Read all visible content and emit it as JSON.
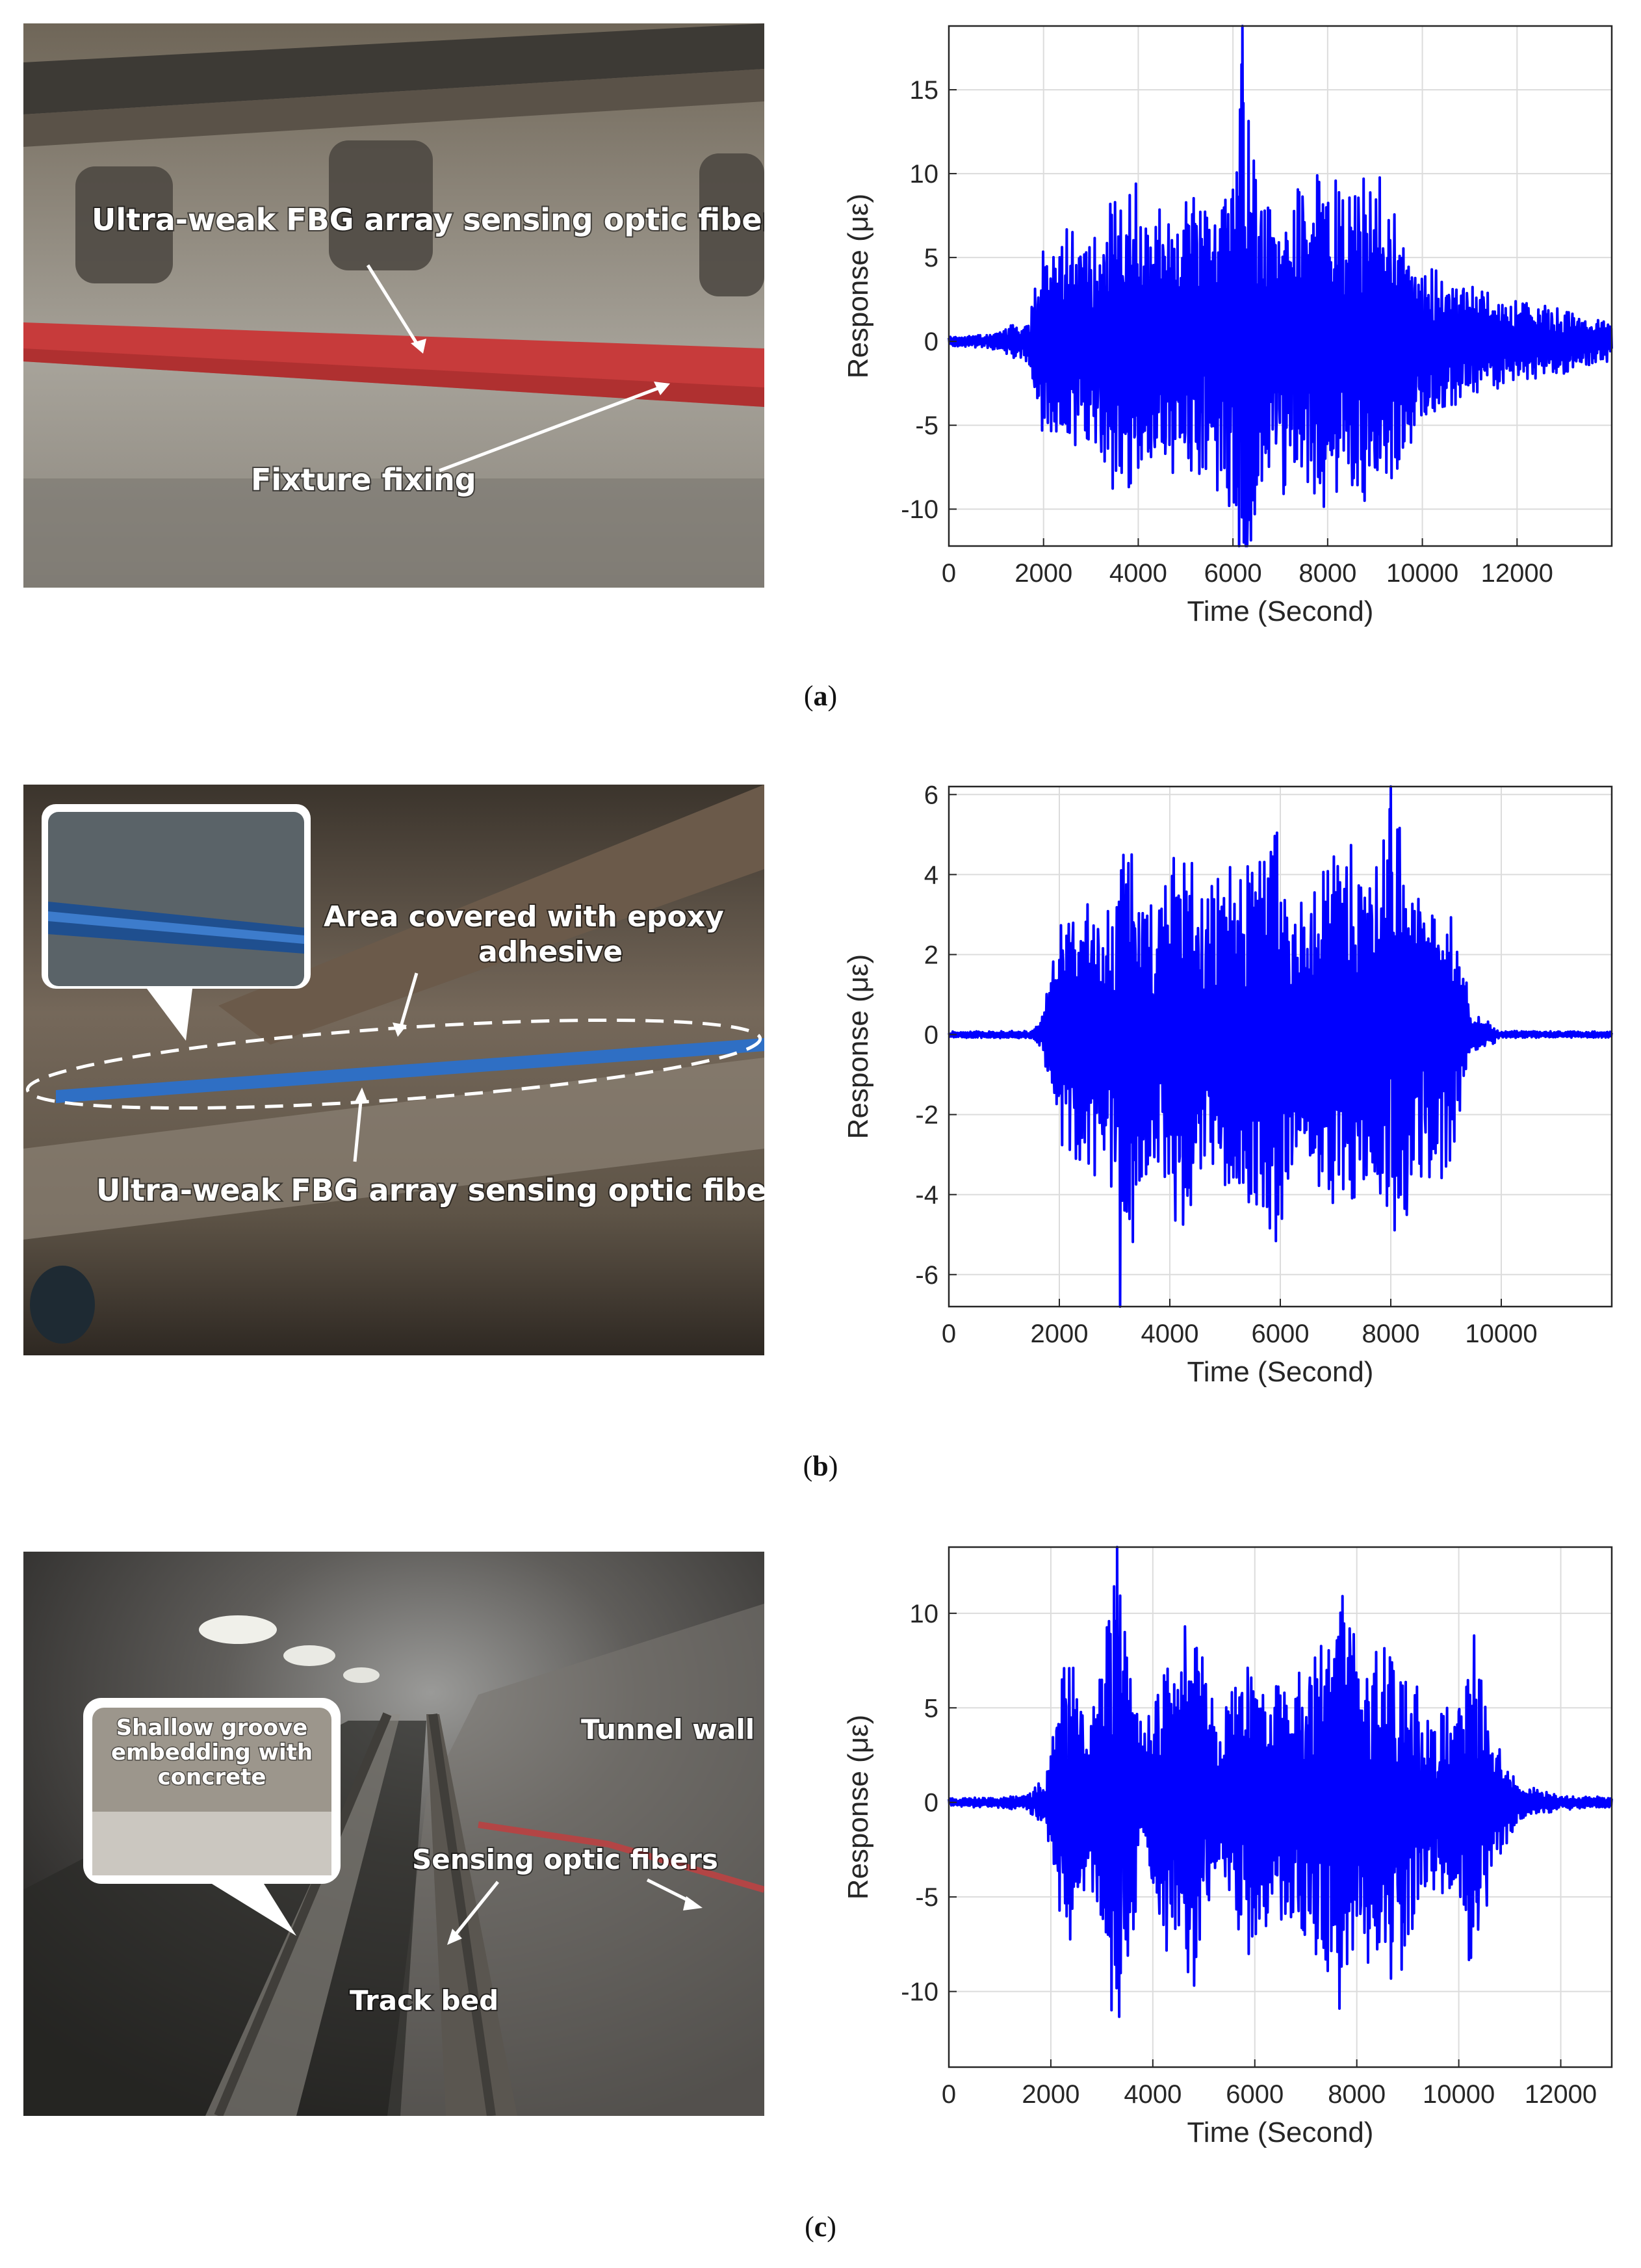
{
  "panels": [
    {
      "caption": "a",
      "photo_labels": {
        "fiber": "Ultra-weak FBG array sensing optic fiber",
        "fixture": "Fixture fixing"
      }
    },
    {
      "caption": "b",
      "photo_labels": {
        "epoxy_line1": "Area covered with epoxy",
        "epoxy_line2": "adhesive",
        "fiber": "Ultra-weak FBG array sensing optic fiber"
      }
    },
    {
      "caption": "c",
      "photo_labels": {
        "groove_line1": "Shallow groove",
        "groove_line2": "embedding with",
        "groove_line3": "concrete",
        "wall": "Tunnel wall",
        "fibers": "Sensing optic fibers",
        "bed": "Track bed"
      }
    }
  ],
  "chart_data": [
    {
      "type": "line",
      "xlabel": "Time (Second)",
      "ylabel": "Response (με)",
      "xlim": [
        0,
        14000
      ],
      "ylim": [
        -12.2,
        18.8
      ],
      "xticks": [
        0,
        2000,
        4000,
        6000,
        8000,
        10000,
        12000
      ],
      "yticks": [
        -10,
        -5,
        0,
        5,
        10,
        15
      ],
      "grid": true,
      "color": "#0000ff",
      "series": [
        {
          "envelope_x": [
            0,
            1000,
            1700,
            2000,
            2500,
            3000,
            3500,
            4000,
            4500,
            5000,
            5500,
            6000,
            6200,
            6500,
            7000,
            7500,
            8000,
            8500,
            9000,
            9500,
            10000,
            10500,
            11000,
            11500,
            12000,
            12500,
            13000,
            13500,
            14000
          ],
          "envelope_y": [
            0.3,
            0.5,
            1.5,
            6.5,
            7,
            6,
            9.5,
            10,
            8.5,
            9,
            8.5,
            10.5,
            18.8,
            10,
            9,
            10,
            10.5,
            10,
            11,
            7.5,
            5,
            4,
            3.5,
            3,
            2.5,
            2.2,
            2,
            1.6,
            1.2
          ],
          "min_spike": [
            6300,
            -12.2
          ],
          "samples": 1400
        }
      ]
    },
    {
      "type": "line",
      "xlabel": "Time (Second)",
      "ylabel": "Response (με)",
      "xlim": [
        0,
        12000
      ],
      "ylim": [
        -6.8,
        6.2
      ],
      "xticks": [
        0,
        2000,
        4000,
        6000,
        8000,
        10000
      ],
      "yticks": [
        -6,
        -4,
        -2,
        0,
        2,
        4,
        6
      ],
      "grid": true,
      "color": "#0000ff",
      "series": [
        {
          "envelope_x": [
            0,
            1500,
            1700,
            1900,
            2300,
            2800,
            3300,
            3700,
            4200,
            4600,
            5000,
            5500,
            5900,
            6300,
            6800,
            7200,
            7700,
            8000,
            8400,
            8900,
            9200,
            9500,
            10000,
            11000,
            12000
          ],
          "envelope_y": [
            0.08,
            0.1,
            0.5,
            2.5,
            4,
            3.5,
            5.5,
            3.5,
            5.5,
            3.5,
            4.5,
            4.5,
            5.5,
            3.5,
            4.5,
            5,
            4,
            6.2,
            4,
            4.2,
            2.5,
            0.6,
            0.1,
            0.08,
            0.08
          ],
          "min_spike": [
            3100,
            -6.8
          ],
          "samples": 1200
        }
      ]
    },
    {
      "type": "line",
      "xlabel": "Time (Second)",
      "ylabel": "Response (με)",
      "xlim": [
        0,
        13000
      ],
      "ylim": [
        -14,
        13.5
      ],
      "xticks": [
        0,
        2000,
        4000,
        6000,
        8000,
        10000,
        12000
      ],
      "yticks": [
        -10,
        -5,
        0,
        5,
        10
      ],
      "grid": true,
      "color": "#0000ff",
      "series": [
        {
          "envelope_x": [
            0,
            1500,
            1900,
            2300,
            2800,
            3300,
            3800,
            4300,
            4800,
            5300,
            5900,
            6300,
            6800,
            7300,
            7800,
            8300,
            8800,
            9300,
            9800,
            10300,
            10700,
            11200,
            12000,
            13000
          ],
          "envelope_y": [
            0.2,
            0.4,
            1.5,
            8,
            5,
            13.5,
            4,
            8.5,
            10,
            4,
            9,
            6,
            7,
            9,
            12,
            8,
            10,
            5,
            5.5,
            9.5,
            3.5,
            1,
            0.4,
            0.3
          ],
          "min_spike": [
            3300,
            -14
          ],
          "samples": 1300
        }
      ]
    }
  ]
}
